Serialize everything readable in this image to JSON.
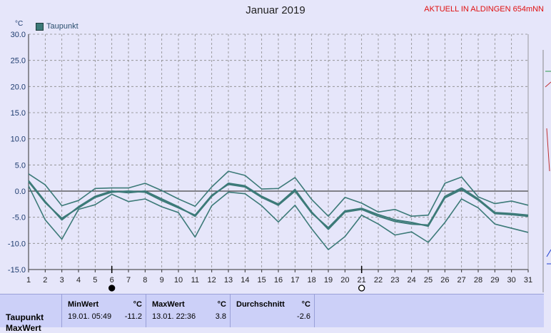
{
  "chart_data": {
    "type": "line",
    "title": "Januar 2019",
    "station": "AKTUELL IN ALDINGEN 654mNN",
    "ylabel": "°C",
    "ylim": [
      -15,
      30
    ],
    "yticks": [
      "30.0",
      "25.0",
      "20.0",
      "15.0",
      "10.0",
      "5.0",
      "0.0",
      "-5.0",
      "-10.0",
      "-15.0"
    ],
    "x": [
      1,
      2,
      3,
      4,
      5,
      6,
      7,
      8,
      9,
      10,
      11,
      12,
      13,
      14,
      15,
      16,
      17,
      18,
      19,
      20,
      21,
      22,
      23,
      24,
      25,
      26,
      27,
      28,
      29,
      30,
      31
    ],
    "grid": true,
    "legend": [
      "Taupunkt"
    ],
    "series": [
      {
        "name": "Taupunkt",
        "color": "#3c7a78",
        "role": "max",
        "values": [
          3.3,
          1.2,
          -2.8,
          -1.8,
          0.5,
          0.6,
          0.6,
          1.5,
          0.1,
          -1.5,
          -2.9,
          0.8,
          3.8,
          3.0,
          0.4,
          0.5,
          2.6,
          -1.6,
          -4.8,
          -1.2,
          -2.3,
          -4.0,
          -3.5,
          -4.8,
          -4.6,
          1.5,
          2.7,
          -1.1,
          -2.4,
          -1.9,
          -2.7
        ]
      },
      {
        "values": [
          2.0,
          -2.0,
          -5.5,
          -3.0,
          -1.0,
          0.0,
          -0.3,
          0.0,
          -1.5,
          -3.0,
          -4.8,
          -1.0,
          1.5,
          1.0,
          -1.0,
          -2.5,
          0.3,
          -4.0,
          -7.3,
          -4.0,
          -3.5,
          -4.8,
          -5.8,
          -6.3,
          -6.5,
          -1.0,
          0.6,
          -1.5,
          -4.1,
          -4.3,
          -4.6
        ]
      },
      {
        "values": [
          1.8,
          -2.2,
          -5.2,
          -3.2,
          -1.2,
          -0.2,
          0.0,
          -0.2,
          -1.8,
          -3.2,
          -4.6,
          -0.8,
          1.3,
          0.8,
          -1.2,
          -2.7,
          0.0,
          -4.2,
          -7.0,
          -3.8,
          -3.3,
          -4.5,
          -5.5,
          -6.0,
          -6.7,
          -1.3,
          0.3,
          -1.7,
          -4.3,
          -4.5,
          -4.8
        ]
      },
      {
        "color": "#3c7a78",
        "role": "min",
        "values": [
          1.0,
          -5.5,
          -9.2,
          -3.5,
          -2.6,
          -0.6,
          -2.0,
          -1.5,
          -3.0,
          -4.1,
          -8.8,
          -2.8,
          -0.2,
          -0.5,
          -2.8,
          -5.9,
          -2.7,
          -7.2,
          -11.2,
          -8.7,
          -4.6,
          -6.3,
          -8.4,
          -7.8,
          -9.8,
          -6.0,
          -1.5,
          -3.2,
          -6.3,
          -7.1,
          -7.9
        ]
      }
    ],
    "markers": [
      {
        "x": 6,
        "symbol": "full-moon-dark"
      },
      {
        "x": 21,
        "symbol": "full-moon-light"
      }
    ]
  },
  "table": {
    "headers": {
      "min": "MinWert",
      "max": "MaxWert",
      "avg": "Durchschnitt",
      "unit": "°C"
    },
    "rows": [
      {
        "label": "Taupunkt",
        "min_time": "19.01.  05:49",
        "min_val": "-11.2",
        "max_time": "13.01.  22:36",
        "max_val": "3.8",
        "avg_val": "-2.6"
      }
    ],
    "next_row_label": "MaxWert"
  }
}
